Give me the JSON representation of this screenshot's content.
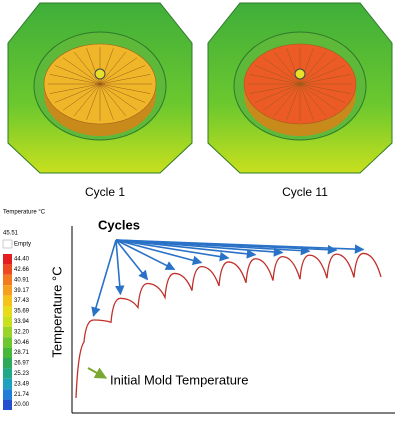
{
  "images": [
    {
      "caption": "Cycle 1",
      "core_color": "#f0b62a"
    },
    {
      "caption": "Cycle 11",
      "core_color": "#ec5a26"
    }
  ],
  "legend": {
    "title": "Temperature °C",
    "max": "45.51",
    "empty": "Empty",
    "levels": [
      {
        "label": "44.40",
        "color": "#e41e1e"
      },
      {
        "label": "42.66",
        "color": "#ee4a1f"
      },
      {
        "label": "40.91",
        "color": "#f47a20"
      },
      {
        "label": "39.17",
        "color": "#f7a01f"
      },
      {
        "label": "37.43",
        "color": "#f5c31a"
      },
      {
        "label": "35.69",
        "color": "#e8dc1a"
      },
      {
        "label": "33.94",
        "color": "#c8e01e"
      },
      {
        "label": "32.20",
        "color": "#9ad426"
      },
      {
        "label": "30.46",
        "color": "#6cc82e"
      },
      {
        "label": "28.71",
        "color": "#46b83a"
      },
      {
        "label": "26.97",
        "color": "#2ea85a"
      },
      {
        "label": "25.23",
        "color": "#22a888"
      },
      {
        "label": "23.49",
        "color": "#1ea0c0"
      },
      {
        "label": "21.74",
        "color": "#1f7fd8"
      },
      {
        "label": "20.00",
        "color": "#2450d0"
      }
    ]
  },
  "plot": {
    "y_axis_label": "Temperature °C",
    "cycles_label": "Cycles",
    "initial_label": "Initial Mold Temperature"
  }
}
